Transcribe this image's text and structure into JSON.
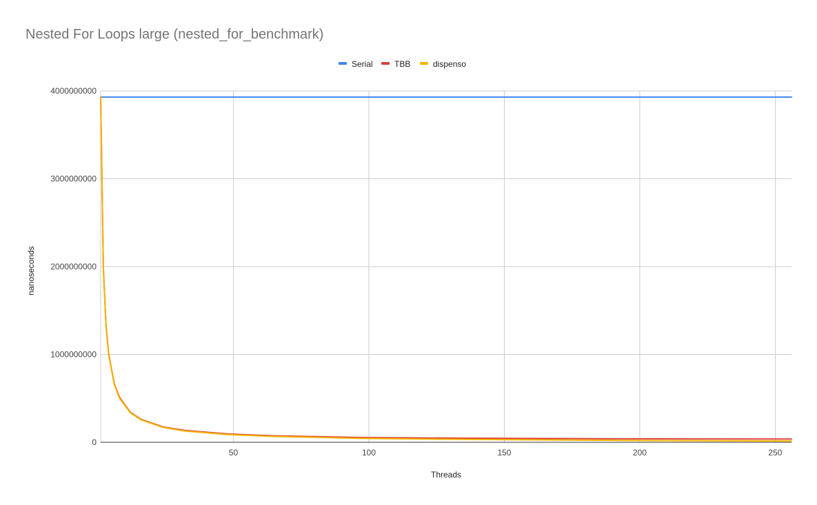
{
  "chart_data": {
    "type": "line",
    "title": "Nested For Loops large (nested_for_benchmark)",
    "xlabel": "Threads",
    "ylabel": "nanoseconds",
    "xlim": [
      1,
      256
    ],
    "ylim": [
      0,
      4000000000
    ],
    "x_ticks": [
      50,
      100,
      150,
      200,
      250
    ],
    "x_tick_labels": [
      "50",
      "100",
      "150",
      "200",
      "250"
    ],
    "y_ticks": [
      0,
      1000000000,
      2000000000,
      3000000000,
      4000000000
    ],
    "y_tick_labels": [
      "0",
      "1000000000",
      "2000000000",
      "3000000000",
      "4000000000"
    ],
    "grid": true,
    "legend_position": "top",
    "x": [
      1,
      2,
      3,
      4,
      6,
      8,
      12,
      16,
      24,
      32,
      48,
      64,
      96,
      128,
      160,
      192,
      224,
      256
    ],
    "series": [
      {
        "name": "Serial",
        "color": "#4285F4",
        "values": [
          3930000000,
          3930000000,
          3930000000,
          3930000000,
          3930000000,
          3930000000,
          3930000000,
          3930000000,
          3930000000,
          3930000000,
          3930000000,
          3930000000,
          3930000000,
          3930000000,
          3930000000,
          3930000000,
          3930000000,
          3930000000
        ]
      },
      {
        "name": "TBB",
        "color": "#DB4437",
        "values": [
          3930000000,
          1980000000,
          1320000000,
          1000000000,
          670000000,
          510000000,
          340000000,
          260000000,
          175000000,
          135000000,
          95000000,
          75000000,
          55000000,
          48000000,
          44000000,
          40000000,
          38000000,
          37000000
        ]
      },
      {
        "name": "dispenso",
        "color": "#F4B400",
        "values": [
          3930000000,
          1970000000,
          1310000000,
          990000000,
          660000000,
          500000000,
          335000000,
          255000000,
          170000000,
          128000000,
          88000000,
          68000000,
          45000000,
          35000000,
          28000000,
          22000000,
          18000000,
          15000000
        ]
      }
    ]
  }
}
